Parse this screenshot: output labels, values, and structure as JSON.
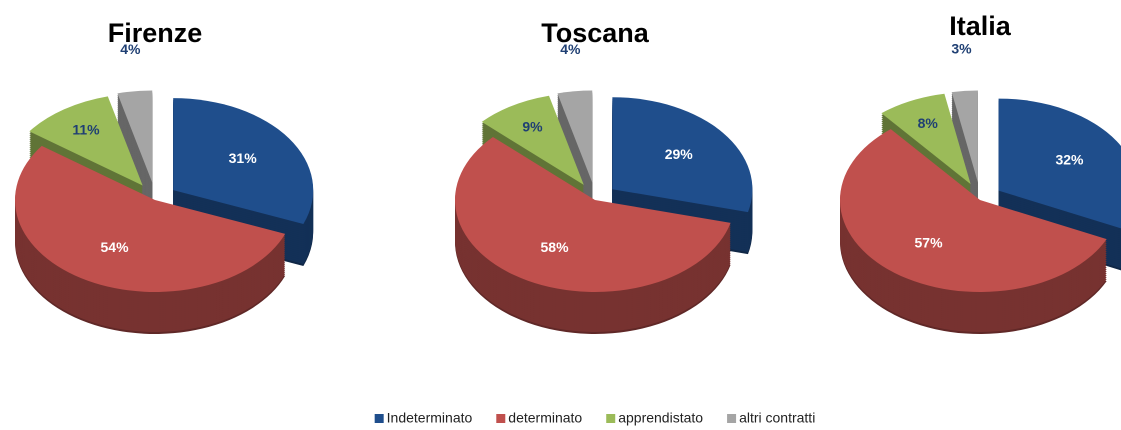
{
  "legend": {
    "labels": [
      "Indeterminato",
      "determinato",
      "apprendistato",
      "altri contratti"
    ],
    "colors": [
      "#1f4e8c",
      "#c0504d",
      "#9bbb59",
      "#a5a5a5"
    ]
  },
  "chart_data": [
    {
      "type": "pie",
      "title": "Firenze",
      "values": [
        31,
        54,
        11,
        4
      ],
      "value_labels": [
        "31%",
        "54%",
        "11%",
        "4%"
      ]
    },
    {
      "type": "pie",
      "title": "Toscana",
      "values": [
        29,
        58,
        9,
        4
      ],
      "value_labels": [
        "29%",
        "58%",
        "9%",
        "4%"
      ]
    },
    {
      "type": "pie",
      "title": "Italia",
      "values": [
        32,
        57,
        8,
        3
      ],
      "value_labels": [
        "32%",
        "57%",
        "8%",
        "3%"
      ]
    }
  ]
}
